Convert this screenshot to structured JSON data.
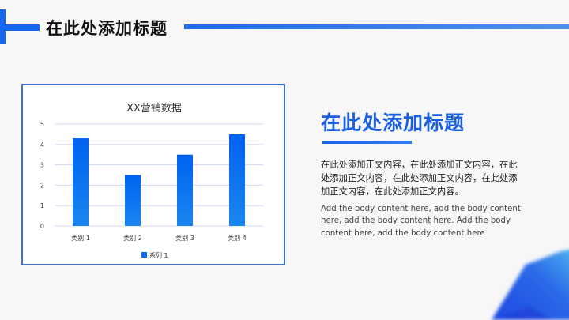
{
  "header": {
    "title": "在此处添加标题",
    "accent_color": "#1667f0"
  },
  "side": {
    "title": "在此处添加标题",
    "body_cn": "在此处添加正文内容，在此处添加正文内容，在此处添加正文内容，在此处添加正文内容，在此处添加正文内容，在此处添加正文内容。",
    "body_en": "Add the body content here, add the body content here, add the body content here. Add the body content here, add the body content here"
  },
  "chart_data": {
    "type": "bar",
    "title": "XX营销数据",
    "categories": [
      "类别 1",
      "类别 2",
      "类别 3",
      "类别 4"
    ],
    "series": [
      {
        "name": "系列 1",
        "values": [
          4.3,
          2.5,
          3.5,
          4.5
        ],
        "color": "#0a6cf0"
      }
    ],
    "ylim": [
      0,
      5
    ],
    "yticks": [
      "0",
      "1",
      "2",
      "3",
      "4",
      "5"
    ],
    "grid": true,
    "legend": "bottom"
  }
}
